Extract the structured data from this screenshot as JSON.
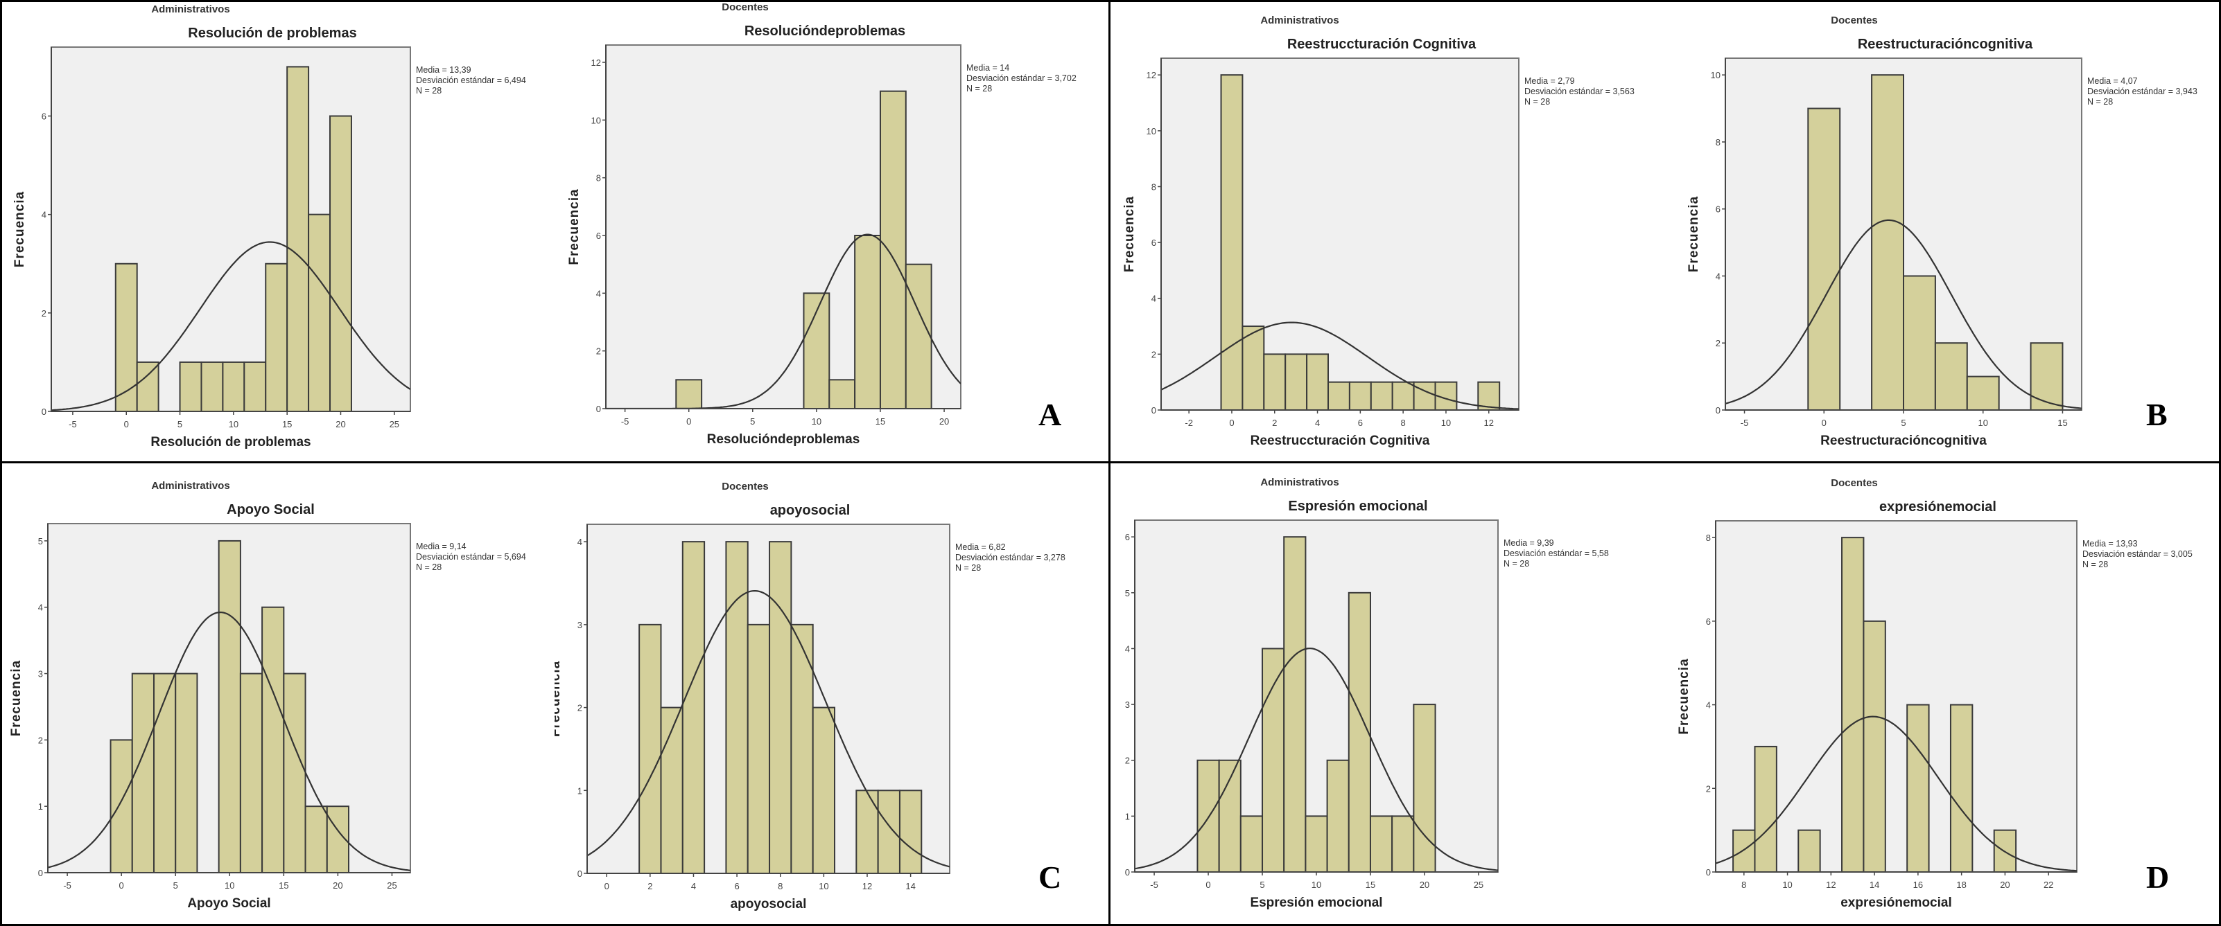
{
  "panels": [
    {
      "letter": "A"
    },
    {
      "letter": "B"
    },
    {
      "letter": "C"
    },
    {
      "letter": "D"
    }
  ],
  "colors": {
    "bar_fill": "#d4d09b",
    "bar_edge": "#3a3a3a",
    "plot_bg": "#f0f0f0",
    "curve": "#333333"
  },
  "chart_data": [
    {
      "type": "bar",
      "panel": "A",
      "group": "Administrativos",
      "title": "Resolución de problemas",
      "xlabel": "Resolución de problemas",
      "ylabel": "Frecuencia",
      "stats": [
        "Media = 13,39",
        "Desviación estándar = 6,494",
        "N = 28"
      ],
      "mean": 13.39,
      "sd": 6.494,
      "n": 28,
      "bin_width": 2,
      "bins": [
        0,
        2,
        4,
        6,
        8,
        10,
        12,
        14,
        16,
        18,
        20
      ],
      "counts": [
        3,
        1,
        0,
        1,
        1,
        1,
        1,
        3,
        7,
        4,
        6
      ],
      "xlim": [
        -7,
        26.5
      ],
      "ylim": [
        0,
        7.4
      ],
      "xticks": [
        -5,
        0,
        5,
        10,
        15,
        20,
        25
      ],
      "yticks": [
        0,
        2,
        4,
        6
      ]
    },
    {
      "type": "bar",
      "panel": "A",
      "group": "Docentes",
      "title": "Resolucióndeproblemas",
      "xlabel": "Resolucióndeproblemas",
      "ylabel": "Frecuencia",
      "stats": [
        "Media = 14",
        "Desviación estándar = 3,702",
        "N = 28"
      ],
      "mean": 14,
      "sd": 3.702,
      "n": 28,
      "bin_width": 2,
      "bins": [
        0,
        10,
        12,
        14,
        16,
        18
      ],
      "counts": [
        1,
        4,
        1,
        6,
        11,
        5
      ],
      "xlim": [
        -6.5,
        21.3
      ],
      "ylim": [
        0,
        12.6
      ],
      "xticks": [
        -5,
        0,
        5,
        10,
        15,
        20
      ],
      "yticks": [
        0,
        2,
        4,
        6,
        8,
        10,
        12
      ]
    },
    {
      "type": "bar",
      "panel": "B",
      "group": "Administrativos",
      "title": "Reestruccturación Cognitiva",
      "xlabel": "Reestruccturación Cognitiva",
      "ylabel": "Frecuencia",
      "stats": [
        "Media = 2,79",
        "Desviación estándar = 3,563",
        "N = 28"
      ],
      "mean": 2.79,
      "sd": 3.563,
      "n": 28,
      "bin_width": 1,
      "bins": [
        0,
        1,
        2,
        3,
        4,
        5,
        6,
        7,
        8,
        9,
        10,
        12
      ],
      "counts": [
        12,
        3,
        2,
        2,
        2,
        1,
        1,
        1,
        1,
        1,
        1,
        1
      ],
      "xlim": [
        -3.3,
        13.4
      ],
      "ylim": [
        0,
        12.6
      ],
      "xticks": [
        -2,
        0,
        2,
        4,
        6,
        8,
        10,
        12
      ],
      "yticks": [
        0,
        2,
        4,
        6,
        8,
        10,
        12
      ]
    },
    {
      "type": "bar",
      "panel": "B",
      "group": "Docentes",
      "title": "Reestructuracióncognitiva",
      "xlabel": "Reestructuracióncognitiva",
      "ylabel": "Frecuencia",
      "stats": [
        "Media = 4,07",
        "Desviación estándar = 3,943",
        "N = 28"
      ],
      "mean": 4.07,
      "sd": 3.943,
      "n": 28,
      "bin_width": 2,
      "bins": [
        0,
        4,
        6,
        8,
        10,
        14
      ],
      "counts": [
        9,
        10,
        4,
        2,
        1,
        2
      ],
      "xlim": [
        -6.2,
        16.2
      ],
      "ylim": [
        0,
        10.5
      ],
      "xticks": [
        -5,
        0,
        5,
        10,
        15
      ],
      "yticks": [
        0,
        2,
        4,
        6,
        8,
        10
      ]
    },
    {
      "type": "bar",
      "panel": "C",
      "group": "Administrativos",
      "title": "Apoyo Social",
      "xlabel": "Apoyo Social",
      "ylabel": "Frecuencia",
      "stats": [
        "Media = 9,14",
        "Desviación estándar = 5,694",
        "N = 28"
      ],
      "mean": 9.14,
      "sd": 5.694,
      "n": 28,
      "bin_width": 2,
      "bins": [
        0,
        2,
        4,
        6,
        10,
        12,
        14,
        16,
        18,
        20
      ],
      "counts": [
        2,
        3,
        3,
        3,
        5,
        3,
        4,
        3,
        1,
        1
      ],
      "xlim": [
        -6.8,
        26.7
      ],
      "ylim": [
        0,
        5.26
      ],
      "xticks": [
        -5,
        0,
        5,
        10,
        15,
        20,
        25
      ],
      "yticks": [
        0,
        1,
        2,
        3,
        4,
        5
      ]
    },
    {
      "type": "bar",
      "panel": "C",
      "group": "Docentes",
      "title": "apoyosocial",
      "xlabel": "apoyosocial",
      "ylabel": "Frecuencia",
      "stats": [
        "Media = 6,82",
        "Desviación estándar = 3,278",
        "N = 28"
      ],
      "mean": 6.82,
      "sd": 3.278,
      "n": 28,
      "bin_width": 1,
      "bins": [
        2,
        3,
        4,
        6,
        7,
        8,
        9,
        10,
        12,
        13,
        14
      ],
      "counts": [
        3,
        2,
        4,
        4,
        3,
        4,
        3,
        2,
        1,
        1,
        1
      ],
      "xlim": [
        -0.9,
        15.8
      ],
      "ylim": [
        0,
        4.21
      ],
      "xticks": [
        0,
        2,
        4,
        6,
        8,
        10,
        12,
        14
      ],
      "yticks": [
        0,
        1,
        2,
        3,
        4
      ]
    },
    {
      "type": "bar",
      "panel": "D",
      "group": "Administrativos",
      "title": "Espresión emocional",
      "xlabel": "Espresión emocional",
      "ylabel": "Frecuencia",
      "stats": [
        "Media = 9,39",
        "Desviación estándar = 5,58",
        "N = 28"
      ],
      "mean": 9.39,
      "sd": 5.58,
      "n": 28,
      "bin_width": 2,
      "bins": [
        0,
        2,
        4,
        6,
        8,
        10,
        12,
        14,
        16,
        18,
        20
      ],
      "counts": [
        2,
        2,
        1,
        4,
        6,
        1,
        2,
        5,
        1,
        1,
        3
      ],
      "xlim": [
        -6.8,
        26.8
      ],
      "ylim": [
        0,
        6.3
      ],
      "xticks": [
        -5,
        0,
        5,
        10,
        15,
        20,
        25
      ],
      "yticks": [
        0,
        1,
        2,
        3,
        4,
        5,
        6
      ]
    },
    {
      "type": "bar",
      "panel": "D",
      "group": "Docentes",
      "title": "expresiónemocial",
      "xlabel": "expresiónemocial",
      "ylabel": "Frecuencia",
      "stats": [
        "Media = 13,93",
        "Desviación estándar = 3,005",
        "N = 28"
      ],
      "mean": 13.93,
      "sd": 3.005,
      "n": 28,
      "bin_width": 1,
      "bins": [
        8,
        9,
        11,
        13,
        14,
        16,
        18,
        20
      ],
      "counts": [
        1,
        3,
        1,
        8,
        6,
        4,
        4,
        1
      ],
      "xlim": [
        6.7,
        23.3
      ],
      "ylim": [
        0,
        8.4
      ],
      "xticks": [
        8,
        10,
        12,
        14,
        16,
        18,
        20,
        22
      ],
      "yticks": [
        0,
        2,
        4,
        6,
        8
      ]
    }
  ]
}
